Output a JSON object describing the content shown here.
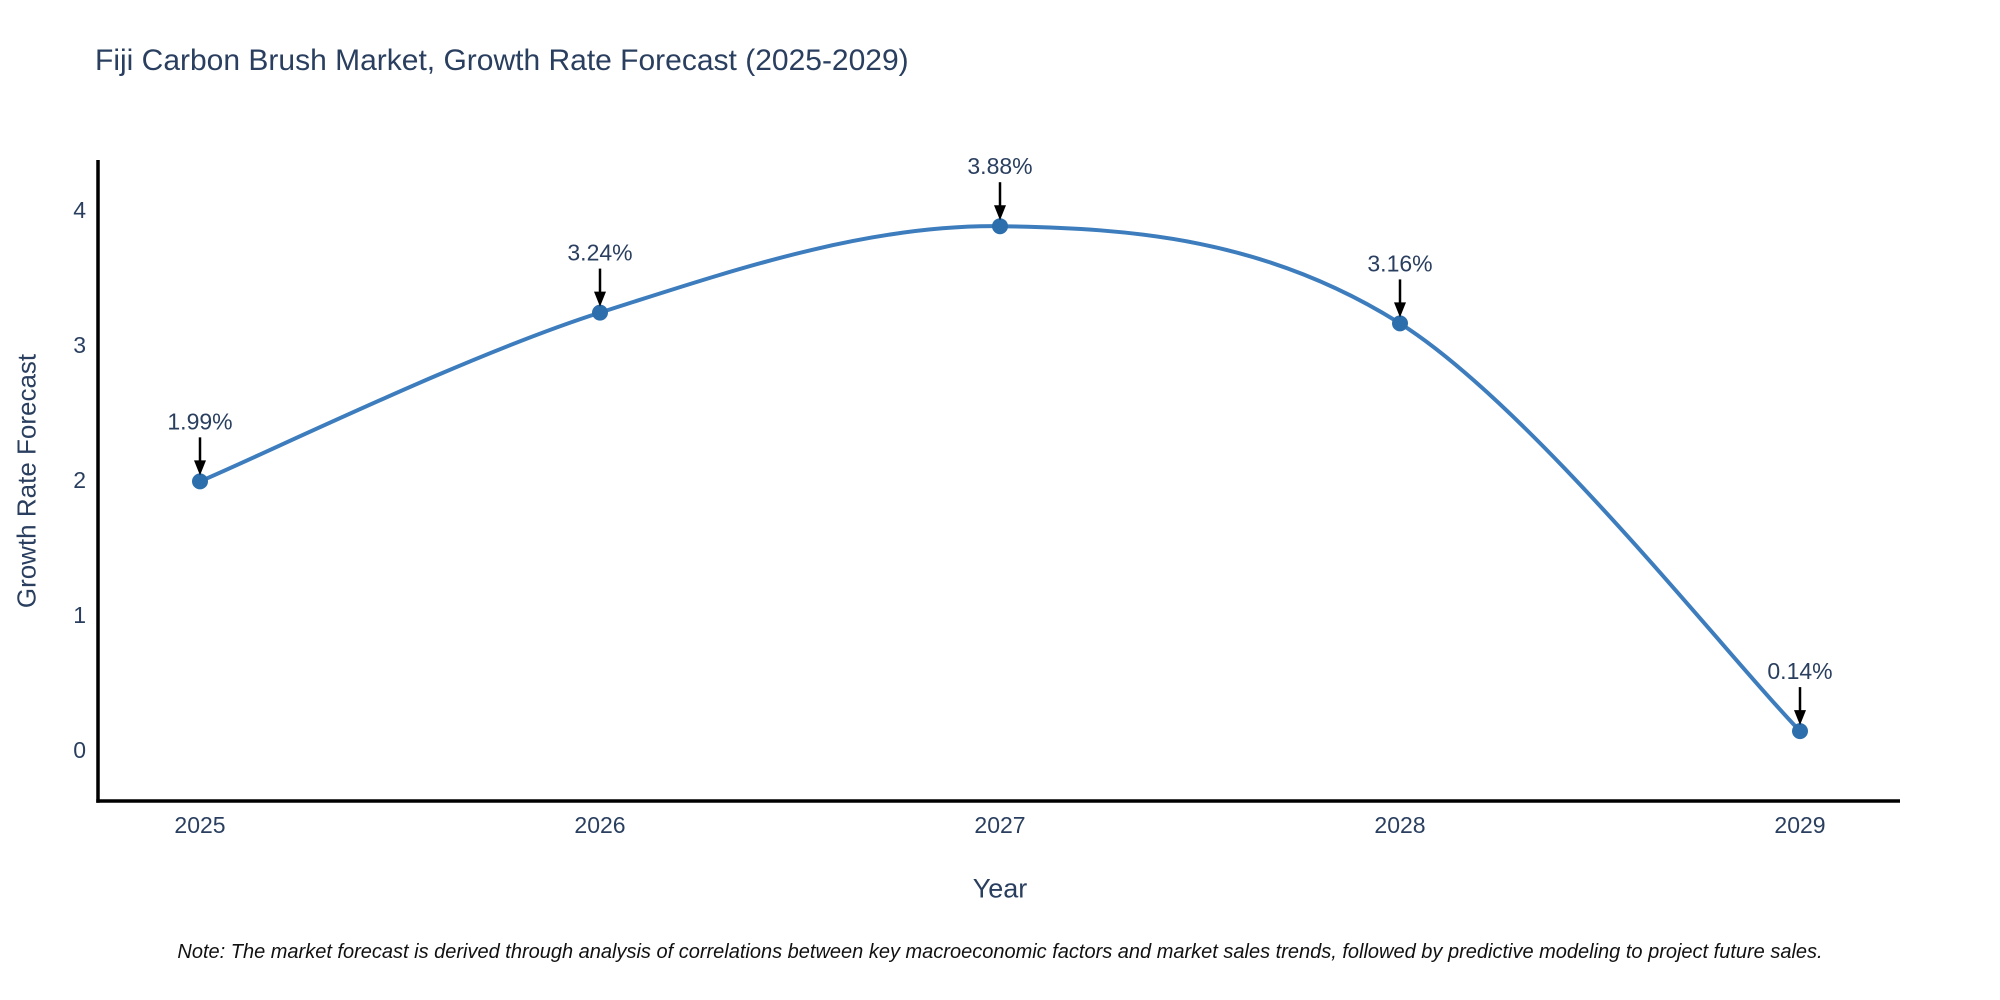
{
  "figure": {
    "note": "Note: The market forecast is derived through analysis of correlations between key macroeconomic factors and market sales trends, followed by predictive modeling to project future sales."
  },
  "chart_data": {
    "type": "line",
    "line_shape": "spline",
    "title": "Fiji Carbon Brush Market, Growth Rate Forecast (2025-2029)",
    "xlabel": "Year",
    "ylabel": "Growth Rate Forecast",
    "categories": [
      2025,
      2026,
      2027,
      2028,
      2029
    ],
    "values": [
      1.99,
      3.24,
      3.88,
      3.16,
      0.14
    ],
    "point_labels": [
      "1.99%",
      "3.24%",
      "3.88%",
      "3.16%",
      "0.14%"
    ],
    "yticks": [
      0,
      1,
      2,
      3,
      4
    ],
    "ylim": [
      -0.38,
      4.38
    ],
    "grid": false,
    "legend": "none",
    "markers": true,
    "annotations": "value labels with downward arrows above each point",
    "colors": {
      "line": "#3d7dbd",
      "marker": "#2d6fad",
      "axis_line": "#000000",
      "tick_text": "#2a3f5f",
      "annotation_text": "#2a3f5f",
      "annotation_arrow": "#000000",
      "title_text": "#2a3f5f",
      "note_text": "#111111",
      "background": "#ffffff"
    }
  }
}
